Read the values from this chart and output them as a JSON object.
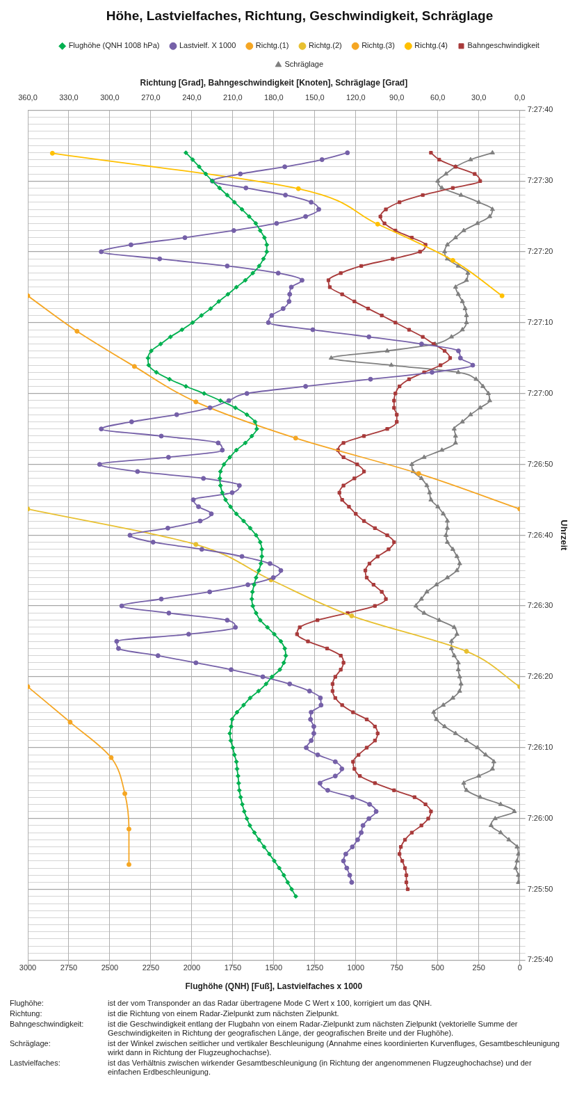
{
  "chart_data": {
    "type": "line",
    "title": "Höhe, Lastvielfaches, Richtung, Geschwindigkeit, Schräglage",
    "ylabel": "Uhrzeit",
    "xlabel": "Flughöhe (QNH) [Fuß], Lastvielfaches x 1000",
    "x2label": "Richtung [Grad], Bahngeschwindigkeit [Knoten], Schräglage [Grad]",
    "legend": "top",
    "grid": true,
    "ylim": [
      7.42778,
      7.46111
    ],
    "yticks": [
      {
        "value": 7.42778,
        "label": "7:25:40"
      },
      {
        "value": 7.42806,
        "label": null
      },
      {
        "value": 7.42833,
        "label": null
      },
      {
        "value": 7.42861,
        "label": null
      },
      {
        "value": 7.42889,
        "label": null
      },
      {
        "value": 7.42917,
        "label": null
      },
      {
        "value": 7.42944,
        "label": null
      },
      {
        "value": 7.42972,
        "label": null
      },
      {
        "value": 7.43,
        "label": null
      },
      {
        "value": 7.43028,
        "label": null
      },
      {
        "value": 7.43056,
        "label": "7:25:50"
      },
      {
        "value": 7.43083,
        "label": null
      },
      {
        "value": 7.43111,
        "label": null
      },
      {
        "value": 7.43139,
        "label": null
      },
      {
        "value": 7.43167,
        "label": null
      },
      {
        "value": 7.43194,
        "label": null
      },
      {
        "value": 7.43222,
        "label": null
      },
      {
        "value": 7.4325,
        "label": null
      },
      {
        "value": 7.43278,
        "label": null
      },
      {
        "value": 7.43306,
        "label": null
      },
      {
        "value": 7.43333,
        "label": "7:26:00"
      },
      {
        "value": 7.43361,
        "label": null
      },
      {
        "value": 7.43389,
        "label": null
      },
      {
        "value": 7.43417,
        "label": null
      },
      {
        "value": 7.43444,
        "label": null
      },
      {
        "value": 7.43472,
        "label": null
      },
      {
        "value": 7.435,
        "label": null
      },
      {
        "value": 7.43528,
        "label": null
      },
      {
        "value": 7.43556,
        "label": null
      },
      {
        "value": 7.43583,
        "label": null
      },
      {
        "value": 7.43611,
        "label": "7:26:10"
      },
      {
        "value": 7.43639,
        "label": null
      },
      {
        "value": 7.43667,
        "label": null
      },
      {
        "value": 7.43694,
        "label": null
      },
      {
        "value": 7.43722,
        "label": null
      },
      {
        "value": 7.4375,
        "label": null
      },
      {
        "value": 7.43778,
        "label": null
      },
      {
        "value": 7.43806,
        "label": null
      },
      {
        "value": 7.43833,
        "label": null
      },
      {
        "value": 7.43861,
        "label": null
      },
      {
        "value": 7.43889,
        "label": "7:26:20"
      },
      {
        "value": 7.43917,
        "label": null
      },
      {
        "value": 7.43944,
        "label": null
      },
      {
        "value": 7.43972,
        "label": null
      },
      {
        "value": 7.44,
        "label": null
      },
      {
        "value": 7.44028,
        "label": null
      },
      {
        "value": 7.44056,
        "label": null
      },
      {
        "value": 7.44083,
        "label": null
      },
      {
        "value": 7.44111,
        "label": null
      },
      {
        "value": 7.44139,
        "label": null
      },
      {
        "value": 7.44167,
        "label": "7:26:30"
      },
      {
        "value": 7.44194,
        "label": null
      },
      {
        "value": 7.44222,
        "label": null
      },
      {
        "value": 7.4425,
        "label": null
      },
      {
        "value": 7.44278,
        "label": null
      },
      {
        "value": 7.44306,
        "label": null
      },
      {
        "value": 7.44333,
        "label": null
      },
      {
        "value": 7.44361,
        "label": null
      },
      {
        "value": 7.44389,
        "label": null
      },
      {
        "value": 7.44417,
        "label": null
      },
      {
        "value": 7.44444,
        "label": "7:26:40"
      },
      {
        "value": 7.44472,
        "label": null
      },
      {
        "value": 7.445,
        "label": null
      },
      {
        "value": 7.44528,
        "label": null
      },
      {
        "value": 7.44556,
        "label": null
      },
      {
        "value": 7.44583,
        "label": null
      },
      {
        "value": 7.44611,
        "label": null
      },
      {
        "value": 7.44639,
        "label": null
      },
      {
        "value": 7.44667,
        "label": null
      },
      {
        "value": 7.44694,
        "label": null
      },
      {
        "value": 7.44722,
        "label": "7:26:50"
      },
      {
        "value": 7.4475,
        "label": null
      },
      {
        "value": 7.44778,
        "label": null
      },
      {
        "value": 7.44806,
        "label": null
      },
      {
        "value": 7.44833,
        "label": null
      },
      {
        "value": 7.44861,
        "label": null
      },
      {
        "value": 7.44889,
        "label": null
      },
      {
        "value": 7.44917,
        "label": null
      },
      {
        "value": 7.44944,
        "label": null
      },
      {
        "value": 7.44972,
        "label": null
      },
      {
        "value": 7.45,
        "label": "7:27:00"
      },
      {
        "value": 7.45028,
        "label": null
      },
      {
        "value": 7.45056,
        "label": null
      },
      {
        "value": 7.45083,
        "label": null
      },
      {
        "value": 7.45111,
        "label": null
      },
      {
        "value": 7.45139,
        "label": null
      },
      {
        "value": 7.45167,
        "label": null
      },
      {
        "value": 7.45194,
        "label": null
      },
      {
        "value": 7.45222,
        "label": null
      },
      {
        "value": 7.4525,
        "label": null
      },
      {
        "value": 7.45278,
        "label": "7:27:10"
      },
      {
        "value": 7.45306,
        "label": null
      },
      {
        "value": 7.45333,
        "label": null
      },
      {
        "value": 7.45361,
        "label": null
      },
      {
        "value": 7.45389,
        "label": null
      },
      {
        "value": 7.45417,
        "label": null
      },
      {
        "value": 7.45444,
        "label": null
      },
      {
        "value": 7.45472,
        "label": null
      },
      {
        "value": 7.455,
        "label": null
      },
      {
        "value": 7.45528,
        "label": null
      },
      {
        "value": 7.45556,
        "label": "7:27:20"
      },
      {
        "value": 7.45583,
        "label": null
      },
      {
        "value": 7.45611,
        "label": null
      },
      {
        "value": 7.45639,
        "label": null
      },
      {
        "value": 7.45667,
        "label": null
      },
      {
        "value": 7.45694,
        "label": null
      },
      {
        "value": 7.45722,
        "label": null
      },
      {
        "value": 7.4575,
        "label": null
      },
      {
        "value": 7.45778,
        "label": null
      },
      {
        "value": 7.45806,
        "label": null
      },
      {
        "value": 7.45833,
        "label": "7:27:30"
      },
      {
        "value": 7.45861,
        "label": null
      },
      {
        "value": 7.45889,
        "label": null
      },
      {
        "value": 7.45917,
        "label": null
      },
      {
        "value": 7.45944,
        "label": null
      },
      {
        "value": 7.45972,
        "label": null
      },
      {
        "value": 7.46,
        "label": null
      },
      {
        "value": 7.46028,
        "label": null
      },
      {
        "value": 7.46056,
        "label": null
      },
      {
        "value": 7.46083,
        "label": null
      },
      {
        "value": 7.46111,
        "label": "7:27:40"
      }
    ],
    "xlim": [
      3000,
      0
    ],
    "xticks": [
      0,
      250,
      500,
      750,
      1000,
      1250,
      1500,
      1750,
      2000,
      2250,
      2500,
      2750,
      3000
    ],
    "x2lim": [
      360,
      0
    ],
    "x2ticks": [
      {
        "value": 0,
        "label": "0,0"
      },
      {
        "value": 30,
        "label": "30,0"
      },
      {
        "value": 60,
        "label": "60,0"
      },
      {
        "value": 90,
        "label": "90,0"
      },
      {
        "value": 120,
        "label": "120,0"
      },
      {
        "value": 150,
        "label": "150,0"
      },
      {
        "value": 180,
        "label": "180,0"
      },
      {
        "value": 210,
        "label": "210,0"
      },
      {
        "value": 240,
        "label": "240,0"
      },
      {
        "value": 270,
        "label": "270,0"
      },
      {
        "value": 300,
        "label": "300,0"
      },
      {
        "value": 330,
        "label": "330,0"
      },
      {
        "value": 360,
        "label": "360,0"
      }
    ],
    "series": [
      {
        "name": "Flughöhe (QNH 1008 hPa)",
        "color": "#00b050",
        "marker": "diamond",
        "x": [
          1366,
          1391,
          1415,
          1439,
          1467,
          1497,
          1527,
          1559,
          1590,
          1618,
          1646,
          1664,
          1680,
          1692,
          1702,
          1710,
          1714,
          1718,
          1724,
          1728,
          1740,
          1750,
          1762,
          1768,
          1760,
          1754,
          1724,
          1684,
          1644,
          1593,
          1547,
          1511,
          1463,
          1439,
          1427,
          1433,
          1457,
          1497,
          1539,
          1583,
          1608,
          1628,
          1634,
          1630,
          1620,
          1608,
          1591,
          1579,
          1573,
          1573,
          1583,
          1608,
          1644,
          1684,
          1728,
          1764,
          1794,
          1814,
          1825,
          1829,
          1825,
          1804,
          1768,
          1728,
          1674,
          1634,
          1604,
          1614,
          1664,
          1734,
          1825,
          1925,
          2036,
          2136,
          2216,
          2263,
          2267,
          2247,
          2190,
          2130,
          2060,
          1995,
          1941,
          1885,
          1835,
          1780,
          1728,
          1674,
          1628,
          1589,
          1563,
          1543,
          1543,
          1557,
          1583,
          1610,
          1650,
          1694,
          1740,
          1784,
          1831,
          1875,
          1915,
          1955,
          1995,
          2036
        ],
        "values": [
          7.43028,
          7.43056,
          7.43083,
          7.43111,
          7.43139,
          7.43167,
          7.43194,
          7.43222,
          7.4325,
          7.43278,
          7.43306,
          7.43333,
          7.43361,
          7.43389,
          7.43417,
          7.43444,
          7.43472,
          7.435,
          7.43528,
          7.43556,
          7.43583,
          7.43611,
          7.43639,
          7.43667,
          7.43694,
          7.43722,
          7.4375,
          7.43778,
          7.43806,
          7.43833,
          7.43861,
          7.43889,
          7.43917,
          7.43944,
          7.43972,
          7.44,
          7.44028,
          7.44056,
          7.44083,
          7.44111,
          7.44139,
          7.44167,
          7.44194,
          7.44222,
          7.4425,
          7.44278,
          7.44306,
          7.44333,
          7.44361,
          7.44389,
          7.44417,
          7.44444,
          7.44472,
          7.445,
          7.44528,
          7.44556,
          7.44583,
          7.44611,
          7.44639,
          7.44667,
          7.44694,
          7.44722,
          7.4475,
          7.44778,
          7.44806,
          7.44833,
          7.44861,
          7.44889,
          7.44917,
          7.44944,
          7.44972,
          7.45,
          7.45028,
          7.45056,
          7.45083,
          7.45111,
          7.45139,
          7.45167,
          7.45194,
          7.45222,
          7.4525,
          7.45278,
          7.45306,
          7.45333,
          7.45361,
          7.45389,
          7.45417,
          7.45444,
          7.45472,
          7.455,
          7.45528,
          7.45556,
          7.45583,
          7.45611,
          7.45639,
          7.45667,
          7.45694,
          7.45722,
          7.4575,
          7.45778,
          7.45806,
          7.45833,
          7.45861,
          7.45889,
          7.45917,
          7.45944
        ]
      },
      {
        "name": "Lastvielf. X 1000",
        "color": "#7560a8",
        "marker": "circle",
        "x": [
          1025,
          1037,
          1055,
          1075,
          1061,
          1021,
          989,
          967,
          956,
          920,
          876,
          916,
          1021,
          1171,
          1218,
          1125,
          1085,
          1125,
          1232,
          1302,
          1272,
          1256,
          1256,
          1276,
          1272,
          1212,
          1216,
          1282,
          1403,
          1567,
          1760,
          1975,
          2206,
          2447,
          2458,
          2019,
          1734,
          1784,
          2140,
          2427,
          2186,
          1891,
          1658,
          1503,
          1457,
          1523,
          1694,
          1939,
          2236,
          2377,
          2146,
          1949,
          1881,
          1959,
          1991,
          1754,
          1710,
          1929,
          2331,
          2562,
          2142,
          1814,
          1839,
          2186,
          2552,
          2367,
          2092,
          1889,
          1774,
          1664,
          1306,
          910,
          535,
          287,
          362,
          374,
          599,
          920,
          1262,
          1533,
          1513,
          1443,
          1407,
          1403,
          1393,
          1328,
          1473,
          1784,
          2196,
          2552,
          2371,
          2042,
          1744,
          1483,
          1306,
          1226,
          1272,
          1429,
          1670,
          1875,
          1704,
          1433,
          1206,
          1051
        ],
        "values": [
          7.43083,
          7.43111,
          7.43139,
          7.43167,
          7.43194,
          7.43222,
          7.4325,
          7.43278,
          7.43306,
          7.43333,
          7.43361,
          7.43389,
          7.43417,
          7.43444,
          7.43472,
          7.435,
          7.43528,
          7.43556,
          7.43583,
          7.43611,
          7.43639,
          7.43667,
          7.43694,
          7.43722,
          7.4375,
          7.43778,
          7.43806,
          7.43833,
          7.43861,
          7.43889,
          7.43917,
          7.43944,
          7.43972,
          7.44,
          7.44028,
          7.44056,
          7.44083,
          7.44111,
          7.44139,
          7.44167,
          7.44194,
          7.44222,
          7.4425,
          7.44278,
          7.44306,
          7.44333,
          7.44361,
          7.44389,
          7.44417,
          7.44444,
          7.44472,
          7.445,
          7.44528,
          7.44556,
          7.44583,
          7.44611,
          7.44639,
          7.44667,
          7.44694,
          7.44722,
          7.4475,
          7.44778,
          7.44806,
          7.44833,
          7.44861,
          7.44889,
          7.44917,
          7.44944,
          7.44972,
          7.45,
          7.45028,
          7.45056,
          7.45083,
          7.45111,
          7.45139,
          7.45167,
          7.45194,
          7.45222,
          7.4525,
          7.45278,
          7.45306,
          7.45333,
          7.45361,
          7.45389,
          7.45417,
          7.45444,
          7.45472,
          7.455,
          7.45528,
          7.45556,
          7.45583,
          7.45611,
          7.45639,
          7.45667,
          7.45694,
          7.45722,
          7.4575,
          7.45778,
          7.45806,
          7.45833,
          7.45861,
          7.45889,
          7.45917,
          7.45944
        ]
      },
      {
        "name": "Richtg.(1)",
        "color": "#f5a623",
        "marker": "circle",
        "axis": "x2",
        "x": [
          286,
          286,
          289,
          299,
          329,
          360
        ],
        "values": [
          7.43153,
          7.43292,
          7.43431,
          7.43572,
          7.43711,
          7.4385
        ]
      },
      {
        "name": "Richtg.(2)",
        "color": "#e8c030",
        "marker": "circle",
        "axis": "x2",
        "x": [
          0,
          39,
          123,
          182,
          237,
          360
        ],
        "values": [
          7.4385,
          7.43989,
          7.44128,
          7.44269,
          7.44408,
          7.44547
        ]
      },
      {
        "name": "Richtg.(3)",
        "color": "#f5a623",
        "marker": "circle",
        "axis": "x2",
        "x": [
          0,
          74,
          164,
          237,
          282,
          324,
          360
        ],
        "values": [
          7.44547,
          7.44686,
          7.44825,
          7.44967,
          7.45106,
          7.45244,
          7.45383
        ]
      },
      {
        "name": "Richtg.(4)",
        "color": "#ffc000",
        "marker": "circle",
        "axis": "x2",
        "x": [
          13,
          49,
          104,
          162,
          342
        ],
        "values": [
          7.45383,
          7.45522,
          7.45664,
          7.45803,
          7.45942
        ]
      },
      {
        "name": "Bahngeschwindigkeit",
        "color": "#a83a3a",
        "marker": "square",
        "axis": "x2",
        "x": [
          82,
          83,
          83,
          84,
          86,
          88,
          87,
          84,
          79,
          72,
          67,
          65,
          69,
          77,
          92,
          106,
          117,
          121,
          122,
          118,
          112,
          106,
          104,
          106,
          112,
          122,
          130,
          135,
          137,
          137,
          135,
          131,
          129,
          131,
          141,
          155,
          163,
          161,
          148,
          126,
          106,
          98,
          101,
          107,
          112,
          113,
          110,
          104,
          96,
          92,
          97,
          106,
          114,
          120,
          125,
          130,
          132,
          129,
          121,
          114,
          119,
          129,
          133,
          129,
          114,
          97,
          90,
          90,
          92,
          92,
          91,
          88,
          81,
          70,
          58,
          51,
          55,
          63,
          71,
          81,
          91,
          101,
          111,
          121,
          130,
          139,
          140,
          131,
          116,
          93,
          73,
          69,
          79,
          91,
          99,
          102,
          98,
          88,
          71,
          49,
          29,
          33,
          47,
          59,
          65
        ],
        "values": [
          7.43056,
          7.43083,
          7.43111,
          7.43139,
          7.43167,
          7.43194,
          7.43222,
          7.4325,
          7.43278,
          7.43306,
          7.43333,
          7.43361,
          7.43389,
          7.43417,
          7.43444,
          7.43472,
          7.435,
          7.43528,
          7.43556,
          7.43583,
          7.43611,
          7.43639,
          7.43667,
          7.43694,
          7.43722,
          7.4375,
          7.43778,
          7.43806,
          7.43833,
          7.43861,
          7.43889,
          7.43917,
          7.43944,
          7.43972,
          7.44,
          7.44028,
          7.44056,
          7.44083,
          7.44111,
          7.44139,
          7.44167,
          7.44194,
          7.44222,
          7.4425,
          7.44278,
          7.44306,
          7.44333,
          7.44361,
          7.44389,
          7.44417,
          7.44444,
          7.44472,
          7.445,
          7.44528,
          7.44556,
          7.44583,
          7.44611,
          7.44639,
          7.44667,
          7.44694,
          7.44722,
          7.4475,
          7.44778,
          7.44806,
          7.44833,
          7.44861,
          7.44889,
          7.44917,
          7.44944,
          7.44972,
          7.45,
          7.45028,
          7.45056,
          7.45083,
          7.45111,
          7.45139,
          7.45167,
          7.45194,
          7.45222,
          7.4525,
          7.45278,
          7.45306,
          7.45333,
          7.45361,
          7.45389,
          7.45417,
          7.45444,
          7.45472,
          7.455,
          7.45528,
          7.45556,
          7.45583,
          7.45611,
          7.45639,
          7.45667,
          7.45694,
          7.45722,
          7.4575,
          7.45778,
          7.45806,
          7.45833,
          7.45861,
          7.45889,
          7.45917,
          7.45944
        ]
      },
      {
        "name": "Schräglage",
        "color": "#7f7f7f",
        "marker": "triangle",
        "axis": "x2",
        "x": [
          1,
          1,
          3,
          2,
          1,
          2,
          8,
          14,
          21,
          18,
          4,
          14,
          29,
          39,
          41,
          30,
          20,
          19,
          25,
          31,
          39,
          47,
          55,
          61,
          63,
          56,
          49,
          44,
          43,
          44,
          45,
          45,
          48,
          50,
          50,
          46,
          48,
          59,
          70,
          76,
          72,
          68,
          61,
          53,
          46,
          44,
          46,
          49,
          53,
          54,
          53,
          53,
          56,
          60,
          65,
          66,
          68,
          72,
          78,
          79,
          70,
          57,
          47,
          47,
          48,
          42,
          36,
          29,
          22,
          23,
          27,
          32,
          45,
          94,
          138,
          97,
          62,
          50,
          42,
          39,
          39,
          40,
          42,
          45,
          47,
          39,
          38,
          45,
          53,
          55,
          53,
          47,
          41,
          31,
          22,
          20,
          30,
          43,
          57,
          60,
          54,
          47,
          36,
          20
        ],
        "values": [
          7.43083,
          7.43111,
          7.43139,
          7.43167,
          7.43194,
          7.43222,
          7.4325,
          7.43278,
          7.43306,
          7.43333,
          7.43361,
          7.43389,
          7.43417,
          7.43444,
          7.43472,
          7.435,
          7.43528,
          7.43556,
          7.43583,
          7.43611,
          7.43639,
          7.43667,
          7.43694,
          7.43722,
          7.4375,
          7.43778,
          7.43806,
          7.43833,
          7.43861,
          7.43889,
          7.43917,
          7.43944,
          7.43972,
          7.44,
          7.44028,
          7.44056,
          7.44083,
          7.44111,
          7.44139,
          7.44167,
          7.44194,
          7.44222,
          7.4425,
          7.44278,
          7.44306,
          7.44333,
          7.44361,
          7.44389,
          7.44417,
          7.44444,
          7.44472,
          7.445,
          7.44528,
          7.44556,
          7.44583,
          7.44611,
          7.44639,
          7.44667,
          7.44694,
          7.44722,
          7.4475,
          7.44778,
          7.44806,
          7.44833,
          7.44861,
          7.44889,
          7.44917,
          7.44944,
          7.44972,
          7.45,
          7.45028,
          7.45056,
          7.45083,
          7.45111,
          7.45139,
          7.45167,
          7.45194,
          7.45222,
          7.4525,
          7.45278,
          7.45306,
          7.45333,
          7.45361,
          7.45389,
          7.45417,
          7.45444,
          7.45472,
          7.455,
          7.45528,
          7.45556,
          7.45583,
          7.45611,
          7.45639,
          7.45667,
          7.45694,
          7.45722,
          7.4575,
          7.45778,
          7.45806,
          7.45833,
          7.45861,
          7.45889,
          7.45917,
          7.45944
        ]
      }
    ],
    "annotations": [
      "Flughöhe:",
      "ist der vom Transponder an das Radar übertragene Mode C Wert x 100, korrigiert um das QNH.",
      "Richtung:",
      "ist die Richtung von einem Radar-Zielpunkt zum nächsten Zielpunkt.",
      "Bahngeschwindigkeit:",
      "ist die Geschwindigkeit entlang der Flugbahn von einem Radar-Zielpunkt zum nächsten Zielpunkt (vektorielle Summe der Geschwindigkeiten in Richtung der geografischen Länge, der geografischen Breite und der Flughöhe).",
      "Schräglage:",
      "ist der Winkel zwischen seitlicher und vertikaler Beschleunigung  (Annahme eines koordinierten Kurvenfluges,  Gesamtbeschleunigung wirkt dann in Richtung der Flugzeughochachse).",
      "Lastvielfaches:",
      "ist das Verhältnis zwischen wirkender Gesamtbeschleunigung (in Richtung der angenommenen Flugzeughochachse) und der einfachen Erdbeschleunigung."
    ]
  }
}
